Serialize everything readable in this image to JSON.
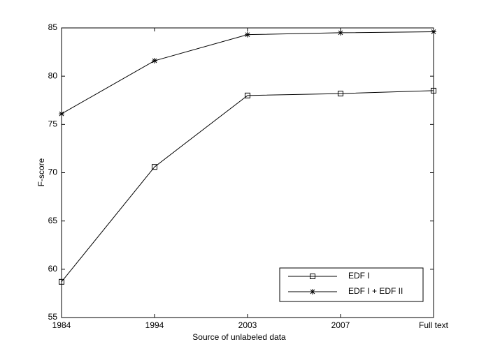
{
  "chart_data": {
    "type": "line",
    "xlabel": "Source of unlabeled data",
    "ylabel": "F-score",
    "categories": [
      "1984",
      "1994",
      "2003",
      "2007",
      "Full text"
    ],
    "series": [
      {
        "name": "EDF I",
        "color": "#000000",
        "marker": "square",
        "values": [
          58.7,
          70.6,
          78.0,
          78.2,
          78.5
        ]
      },
      {
        "name": "EDF I + EDF II",
        "color": "#000000",
        "marker": "star",
        "values": [
          76.1,
          81.6,
          84.3,
          84.5,
          84.6
        ]
      }
    ],
    "ylim": [
      55,
      85
    ],
    "yticks": [
      55,
      60,
      65,
      70,
      75,
      80,
      85
    ],
    "grid": false,
    "legend": "lower right"
  }
}
